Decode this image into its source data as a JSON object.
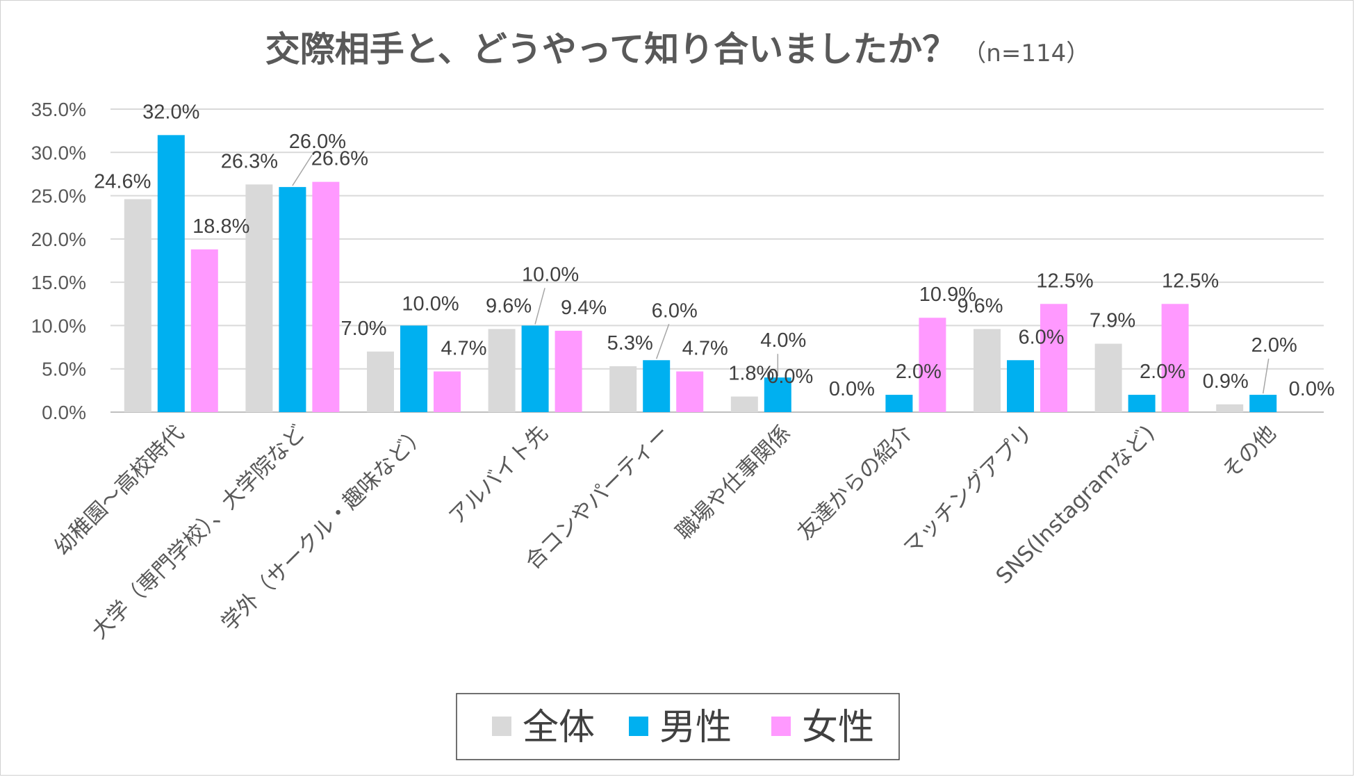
{
  "chart_data": {
    "type": "bar",
    "title": "交際相手と、どうやって知り合いましたか？",
    "subtitle": "（n=114）",
    "categories": [
      "幼稚園～高校時代",
      "大学（専門学校）、大学院など",
      "学外（サークル・趣味など）",
      "アルバイト先",
      "合コンやパーティー",
      "職場や仕事関係",
      "友達からの紹介",
      "マッチングアプリ",
      "SNS(Instagramなど)",
      "その他"
    ],
    "series": [
      {
        "name": "全体",
        "color": "#d9d9d9",
        "values": [
          24.6,
          26.3,
          7.0,
          9.6,
          5.3,
          1.8,
          0.0,
          9.6,
          7.9,
          0.9
        ]
      },
      {
        "name": "男性",
        "color": "#00b0f0",
        "values": [
          32.0,
          26.0,
          10.0,
          10.0,
          6.0,
          4.0,
          2.0,
          6.0,
          2.0,
          2.0
        ]
      },
      {
        "name": "女性",
        "color": "#ff99ff",
        "values": [
          18.8,
          26.6,
          4.7,
          9.4,
          4.7,
          0.0,
          10.9,
          12.5,
          12.5,
          0.0
        ]
      }
    ],
    "ylim": [
      0,
      35
    ],
    "yticks": [
      "0.0%",
      "5.0%",
      "10.0%",
      "15.0%",
      "20.0%",
      "25.0%",
      "30.0%",
      "35.0%"
    ],
    "grid": true,
    "legend": "bottom",
    "xlabel": "",
    "ylabel": ""
  }
}
